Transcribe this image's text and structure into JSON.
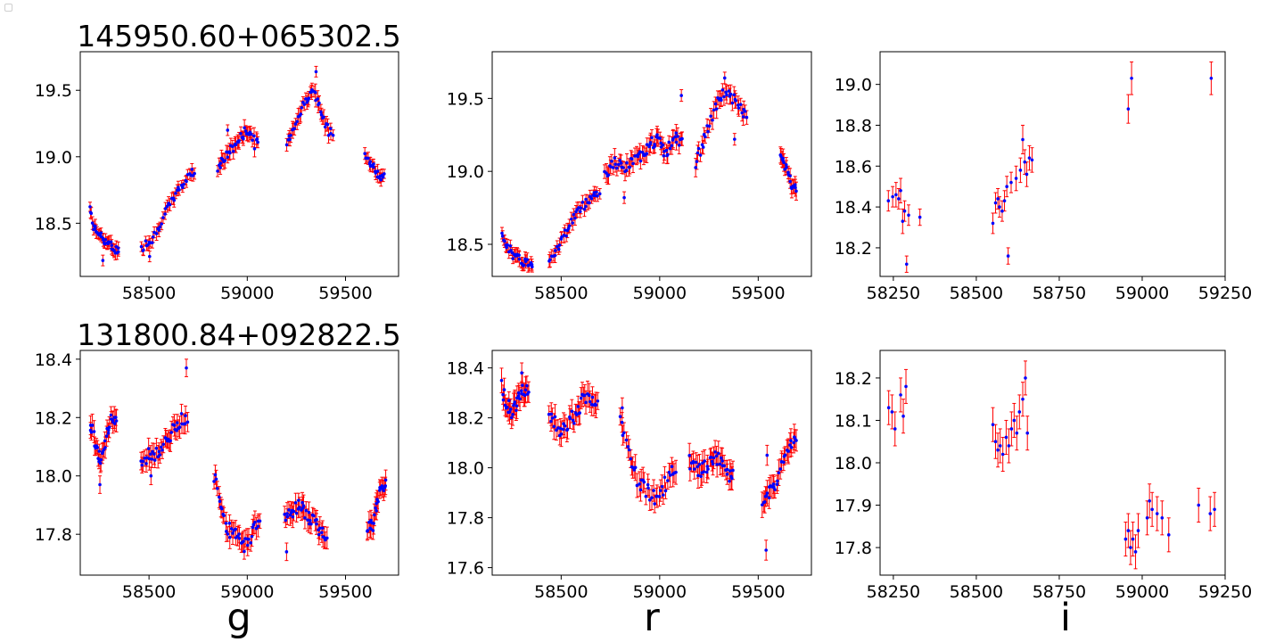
{
  "row_titles": [
    "145950.60+065302.5",
    "131800.84+092822.5"
  ],
  "band_labels": [
    "g",
    "r",
    "i"
  ],
  "colors": {
    "point": "#0000ff",
    "errorbar": "#ff0000",
    "axes": "#000000"
  },
  "chart_data": [
    {
      "type": "scatter",
      "object": "145950.60+065302.5",
      "band": "g",
      "xlim": [
        58150,
        59770
      ],
      "ylim": [
        18.1,
        19.79
      ],
      "xticks": [
        58500,
        59000,
        59500
      ],
      "yticks": [
        18.5,
        19.0,
        19.5
      ],
      "ytick_labels": [
        "18.5",
        "19.0",
        "19.5"
      ],
      "segments": [
        {
          "x0": 58200,
          "x1": 58350,
          "y": [
            18.62,
            18.48,
            18.44,
            18.42,
            18.38,
            18.36,
            18.34,
            18.31,
            18.3
          ],
          "err": 0.04
        },
        {
          "x0": 58460,
          "x1": 58740,
          "y": [
            18.3,
            18.36,
            18.38,
            18.45,
            18.55,
            18.62,
            18.7,
            18.76,
            18.82,
            18.88
          ],
          "err": 0.04
        },
        {
          "x0": 58850,
          "x1": 59060,
          "y": [
            18.93,
            18.97,
            19.0,
            19.04,
            19.08,
            19.12,
            19.16,
            19.2,
            19.18,
            19.1
          ],
          "err": 0.05
        },
        {
          "x0": 59200,
          "x1": 59440,
          "y": [
            19.1,
            19.18,
            19.26,
            19.34,
            19.42,
            19.5,
            19.46,
            19.38,
            19.26,
            19.2
          ],
          "err": 0.05
        },
        {
          "x0": 59600,
          "x1": 59700,
          "y": [
            19.02,
            18.96,
            18.92,
            18.88,
            18.84
          ],
          "err": 0.04
        }
      ],
      "outliers": [
        {
          "x": 58265,
          "y": 18.22
        },
        {
          "x": 58503,
          "y": 18.25
        },
        {
          "x": 58900,
          "y": 19.2
        },
        {
          "x": 59350,
          "y": 19.64
        }
      ]
    },
    {
      "type": "scatter",
      "object": "145950.60+065302.5",
      "band": "r",
      "xlim": [
        58150,
        59770
      ],
      "ylim": [
        18.28,
        19.82
      ],
      "xticks": [
        58500,
        59000,
        59500
      ],
      "yticks": [
        18.5,
        19.0,
        19.5
      ],
      "ytick_labels": [
        "18.5",
        "19.0",
        "19.5"
      ],
      "segments": [
        {
          "x0": 58200,
          "x1": 58360,
          "y": [
            18.58,
            18.52,
            18.46,
            18.42,
            18.4,
            18.38,
            18.38,
            18.37
          ],
          "err": 0.04
        },
        {
          "x0": 58440,
          "x1": 58700,
          "y": [
            18.4,
            18.45,
            18.5,
            18.57,
            18.64,
            18.7,
            18.74,
            18.78,
            18.82,
            18.85
          ],
          "err": 0.04
        },
        {
          "x0": 58720,
          "x1": 58900,
          "y": [
            18.98,
            19.02,
            19.06,
            19.04,
            19.0,
            19.05,
            19.08
          ],
          "err": 0.05
        },
        {
          "x0": 58900,
          "x1": 59120,
          "y": [
            19.1,
            19.14,
            19.18,
            19.2,
            19.22,
            19.16,
            19.12,
            19.18,
            19.24,
            19.2
          ],
          "err": 0.05
        },
        {
          "x0": 59180,
          "x1": 59450,
          "y": [
            19.05,
            19.15,
            19.25,
            19.35,
            19.45,
            19.52,
            19.55,
            19.5,
            19.45,
            19.4
          ],
          "err": 0.05
        },
        {
          "x0": 59610,
          "x1": 59700,
          "y": [
            19.1,
            19.06,
            19.0,
            18.94,
            18.9
          ],
          "err": 0.05
        }
      ],
      "outliers": [
        {
          "x": 58820,
          "y": 18.82
        },
        {
          "x": 59110,
          "y": 19.52
        },
        {
          "x": 59380,
          "y": 19.22
        },
        {
          "x": 59330,
          "y": 19.64
        }
      ]
    },
    {
      "type": "scatter",
      "object": "145950.60+065302.5",
      "band": "i",
      "xlim": [
        58210,
        59250
      ],
      "ylim": [
        18.06,
        19.16
      ],
      "xticks": [
        58250,
        58500,
        58750,
        59000,
        59250
      ],
      "yticks": [
        18.2,
        18.4,
        18.6,
        18.8,
        19.0
      ],
      "ytick_labels": [
        "18.2",
        "18.4",
        "18.6",
        "18.8",
        "19.0"
      ],
      "points": [
        {
          "x": 58235,
          "y": 18.43,
          "err": 0.05
        },
        {
          "x": 58248,
          "y": 18.45,
          "err": 0.05
        },
        {
          "x": 58258,
          "y": 18.46,
          "err": 0.06
        },
        {
          "x": 58266,
          "y": 18.44,
          "err": 0.05
        },
        {
          "x": 58272,
          "y": 18.48,
          "err": 0.06
        },
        {
          "x": 58278,
          "y": 18.33,
          "err": 0.06
        },
        {
          "x": 58284,
          "y": 18.38,
          "err": 0.05
        },
        {
          "x": 58290,
          "y": 18.12,
          "err": 0.04
        },
        {
          "x": 58296,
          "y": 18.36,
          "err": 0.05
        },
        {
          "x": 58330,
          "y": 18.35,
          "err": 0.04
        },
        {
          "x": 58550,
          "y": 18.32,
          "err": 0.05
        },
        {
          "x": 58558,
          "y": 18.42,
          "err": 0.05
        },
        {
          "x": 58565,
          "y": 18.44,
          "err": 0.05
        },
        {
          "x": 58570,
          "y": 18.4,
          "err": 0.05
        },
        {
          "x": 58578,
          "y": 18.38,
          "err": 0.05
        },
        {
          "x": 58585,
          "y": 18.43,
          "err": 0.05
        },
        {
          "x": 58592,
          "y": 18.5,
          "err": 0.05
        },
        {
          "x": 58596,
          "y": 18.16,
          "err": 0.04
        },
        {
          "x": 58605,
          "y": 18.52,
          "err": 0.05
        },
        {
          "x": 58620,
          "y": 18.54,
          "err": 0.06
        },
        {
          "x": 58633,
          "y": 18.58,
          "err": 0.06
        },
        {
          "x": 58640,
          "y": 18.73,
          "err": 0.07
        },
        {
          "x": 58646,
          "y": 18.62,
          "err": 0.06
        },
        {
          "x": 58652,
          "y": 18.56,
          "err": 0.06
        },
        {
          "x": 58660,
          "y": 18.64,
          "err": 0.06
        },
        {
          "x": 58668,
          "y": 18.63,
          "err": 0.06
        },
        {
          "x": 58958,
          "y": 18.88,
          "err": 0.07
        },
        {
          "x": 58968,
          "y": 19.03,
          "err": 0.08
        },
        {
          "x": 59208,
          "y": 19.03,
          "err": 0.08
        }
      ]
    },
    {
      "type": "scatter",
      "object": "131800.84+092822.5",
      "band": "g",
      "xlim": [
        58150,
        59770
      ],
      "ylim": [
        17.66,
        18.43
      ],
      "xticks": [
        58500,
        59000,
        59500
      ],
      "yticks": [
        17.8,
        18.0,
        18.2,
        18.4
      ],
      "ytick_labels": [
        "17.8",
        "18.0",
        "18.2",
        "18.4"
      ],
      "segments": [
        {
          "x0": 58200,
          "x1": 58340,
          "y": [
            18.19,
            18.14,
            18.08,
            18.06,
            18.1,
            18.14,
            18.18,
            18.2
          ],
          "err": 0.03
        },
        {
          "x0": 58460,
          "x1": 58700,
          "y": [
            18.04,
            18.06,
            18.08,
            18.07,
            18.09,
            18.11,
            18.13,
            18.16,
            18.18,
            18.2
          ],
          "err": 0.03
        },
        {
          "x0": 58830,
          "x1": 59070,
          "y": [
            18.0,
            17.95,
            17.87,
            17.82,
            17.8,
            17.79,
            17.76,
            17.77,
            17.8,
            17.84
          ],
          "err": 0.03
        },
        {
          "x0": 59190,
          "x1": 59410,
          "y": [
            17.86,
            17.87,
            17.88,
            17.9,
            17.89,
            17.87,
            17.85,
            17.84,
            17.82,
            17.8
          ],
          "err": 0.03
        },
        {
          "x0": 59610,
          "x1": 59710,
          "y": [
            17.83,
            17.84,
            17.82,
            17.92,
            17.95,
            17.97
          ],
          "err": 0.03
        }
      ],
      "outliers": [
        {
          "x": 58250,
          "y": 17.97
        },
        {
          "x": 58690,
          "y": 18.37
        },
        {
          "x": 59200,
          "y": 17.74
        },
        {
          "x": 58510,
          "y": 18.0
        }
      ]
    },
    {
      "type": "scatter",
      "object": "131800.84+092822.5",
      "band": "r",
      "xlim": [
        58150,
        59770
      ],
      "ylim": [
        17.57,
        18.47
      ],
      "xticks": [
        58500,
        59000,
        59500
      ],
      "yticks": [
        17.6,
        17.8,
        18.0,
        18.2,
        18.4
      ],
      "ytick_labels": [
        "17.6",
        "17.8",
        "18.0",
        "18.2",
        "18.4"
      ],
      "segments": [
        {
          "x0": 58200,
          "x1": 58340,
          "y": [
            18.32,
            18.28,
            18.24,
            18.22,
            18.26,
            18.3,
            18.33,
            18.3
          ],
          "err": 0.04
        },
        {
          "x0": 58440,
          "x1": 58690,
          "y": [
            18.2,
            18.18,
            18.16,
            18.17,
            18.19,
            18.21,
            18.24,
            18.27,
            18.28,
            18.26
          ],
          "err": 0.04
        },
        {
          "x0": 58800,
          "x1": 59090,
          "y": [
            18.2,
            18.08,
            18.02,
            17.96,
            17.92,
            17.9,
            17.88,
            17.9,
            17.94,
            17.98
          ],
          "err": 0.04
        },
        {
          "x0": 59150,
          "x1": 59380,
          "y": [
            18.02,
            18.0,
            17.98,
            17.99,
            18.01,
            18.03,
            18.04,
            18.03,
            18.01,
            17.96
          ],
          "err": 0.04
        },
        {
          "x0": 59520,
          "x1": 59700,
          "y": [
            17.85,
            17.88,
            17.9,
            17.94,
            17.98,
            18.04,
            18.08,
            18.1
          ],
          "err": 0.04
        }
      ],
      "outliers": [
        {
          "x": 59540,
          "y": 17.67
        },
        {
          "x": 59545,
          "y": 18.05
        },
        {
          "x": 58810,
          "y": 18.24
        },
        {
          "x": 58300,
          "y": 18.38
        }
      ]
    },
    {
      "type": "scatter",
      "object": "131800.84+092822.5",
      "band": "i",
      "xlim": [
        58210,
        59250
      ],
      "ylim": [
        17.735,
        18.265
      ],
      "xticks": [
        58250,
        58500,
        58750,
        59000,
        59250
      ],
      "yticks": [
        17.8,
        17.9,
        18.0,
        18.1,
        18.2
      ],
      "ytick_labels": [
        "17.8",
        "17.9",
        "18.0",
        "18.1",
        "18.2"
      ],
      "points": [
        {
          "x": 58236,
          "y": 18.13,
          "err": 0.04
        },
        {
          "x": 58246,
          "y": 18.12,
          "err": 0.04
        },
        {
          "x": 58255,
          "y": 18.08,
          "err": 0.04
        },
        {
          "x": 58272,
          "y": 18.16,
          "err": 0.04
        },
        {
          "x": 58280,
          "y": 18.11,
          "err": 0.04
        },
        {
          "x": 58288,
          "y": 18.18,
          "err": 0.04
        },
        {
          "x": 58550,
          "y": 18.09,
          "err": 0.04
        },
        {
          "x": 58558,
          "y": 18.05,
          "err": 0.04
        },
        {
          "x": 58565,
          "y": 18.03,
          "err": 0.04
        },
        {
          "x": 58572,
          "y": 18.04,
          "err": 0.04
        },
        {
          "x": 58580,
          "y": 18.02,
          "err": 0.04
        },
        {
          "x": 58590,
          "y": 18.06,
          "err": 0.04
        },
        {
          "x": 58598,
          "y": 18.04,
          "err": 0.04
        },
        {
          "x": 58606,
          "y": 18.08,
          "err": 0.04
        },
        {
          "x": 58614,
          "y": 18.1,
          "err": 0.04
        },
        {
          "x": 58622,
          "y": 18.07,
          "err": 0.04
        },
        {
          "x": 58630,
          "y": 18.12,
          "err": 0.04
        },
        {
          "x": 58640,
          "y": 18.15,
          "err": 0.04
        },
        {
          "x": 58648,
          "y": 18.2,
          "err": 0.04
        },
        {
          "x": 58654,
          "y": 18.07,
          "err": 0.04
        },
        {
          "x": 58950,
          "y": 17.82,
          "err": 0.04
        },
        {
          "x": 58958,
          "y": 17.84,
          "err": 0.04
        },
        {
          "x": 58965,
          "y": 17.8,
          "err": 0.04
        },
        {
          "x": 58972,
          "y": 17.82,
          "err": 0.04
        },
        {
          "x": 58980,
          "y": 17.79,
          "err": 0.04
        },
        {
          "x": 58988,
          "y": 17.84,
          "err": 0.04
        },
        {
          "x": 59015,
          "y": 17.87,
          "err": 0.04
        },
        {
          "x": 59022,
          "y": 17.91,
          "err": 0.04
        },
        {
          "x": 59030,
          "y": 17.89,
          "err": 0.04
        },
        {
          "x": 59045,
          "y": 17.88,
          "err": 0.04
        },
        {
          "x": 59060,
          "y": 17.87,
          "err": 0.04
        },
        {
          "x": 59080,
          "y": 17.83,
          "err": 0.04
        },
        {
          "x": 59170,
          "y": 17.9,
          "err": 0.04
        },
        {
          "x": 59205,
          "y": 17.88,
          "err": 0.04
        },
        {
          "x": 59218,
          "y": 17.89,
          "err": 0.04
        }
      ]
    }
  ]
}
